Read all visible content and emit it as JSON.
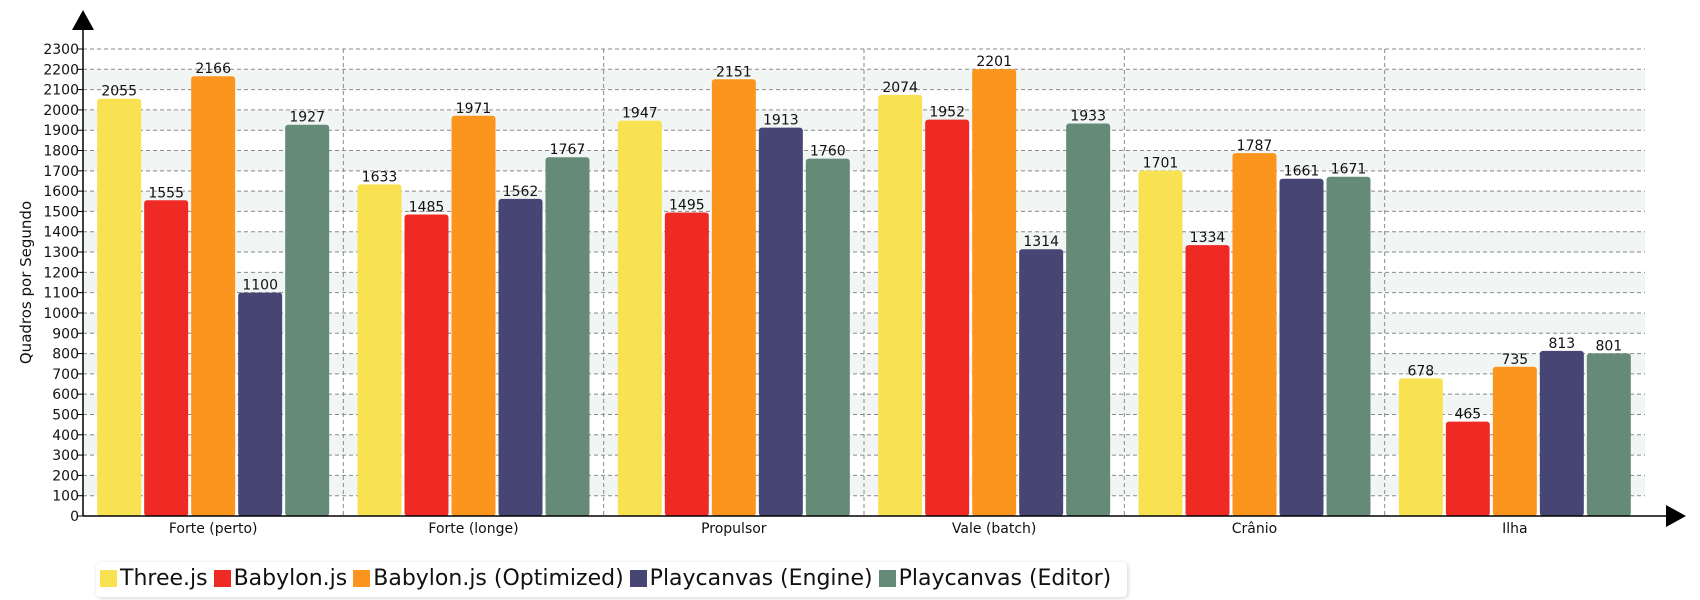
{
  "chart_data": {
    "type": "bar",
    "xlabel": "",
    "ylabel": "Quadros por Segundo",
    "ylim": [
      0,
      2300
    ],
    "ytick_step": 100,
    "grid": true,
    "legend_position": "bottom-left",
    "categories": [
      "Forte (perto)",
      "Forte (longe)",
      "Propulsor",
      "Vale (batch)",
      "Crânio",
      "Ilha"
    ],
    "series": [
      {
        "name": "Three.js",
        "color": "#f9e251",
        "values": [
          2055,
          1633,
          1947,
          2074,
          1701,
          678
        ]
      },
      {
        "name": "Babylon.js",
        "color": "#ef2a25",
        "values": [
          1555,
          1485,
          1495,
          1952,
          1334,
          465
        ]
      },
      {
        "name": "Babylon.js (Optimized)",
        "color": "#fb951e",
        "values": [
          2166,
          1971,
          2151,
          2201,
          1787,
          735
        ]
      },
      {
        "name": "Playcanvas (Engine)",
        "color": "#464573",
        "values": [
          1100,
          1562,
          1913,
          1314,
          1661,
          813
        ]
      },
      {
        "name": "Playcanvas (Editor)",
        "color": "#658b78",
        "values": [
          1927,
          1767,
          1760,
          1933,
          1671,
          801
        ]
      }
    ]
  }
}
